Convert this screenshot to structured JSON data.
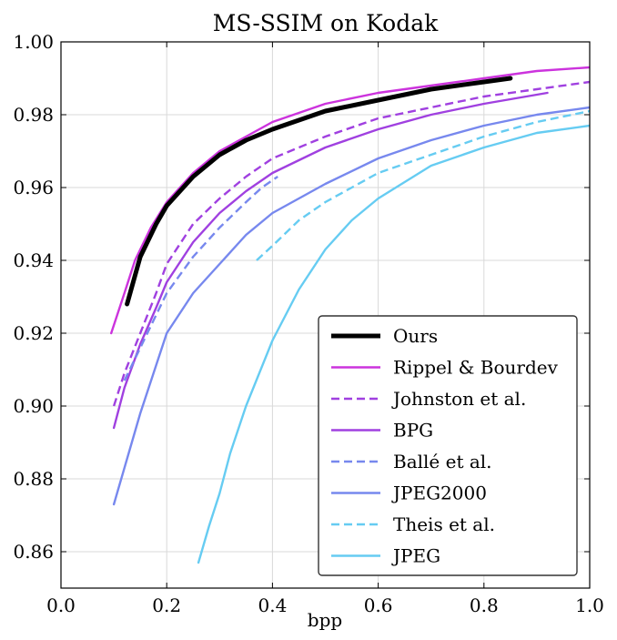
{
  "chart_data": {
    "type": "line",
    "title": "MS-SSIM on Kodak",
    "xlabel": "bpp",
    "ylabel": "",
    "xlim": [
      0.0,
      1.0
    ],
    "ylim": [
      0.85,
      1.0
    ],
    "grid": true,
    "legend_position": "bottom-right",
    "xticks": [
      0.0,
      0.2,
      0.4,
      0.6,
      0.8,
      1.0
    ],
    "xtick_labels": [
      "0.0",
      "0.2",
      "0.4",
      "0.6",
      "0.8",
      "1.0"
    ],
    "yticks": [
      0.86,
      0.88,
      0.9,
      0.92,
      0.94,
      0.96,
      0.98,
      1.0
    ],
    "ytick_labels": [
      "0.86",
      "0.88",
      "0.90",
      "0.92",
      "0.94",
      "0.96",
      "0.98",
      "1.00"
    ],
    "series": [
      {
        "name": "Ours",
        "color": "#000000",
        "dash": "solid",
        "width": 5,
        "x": [
          0.125,
          0.15,
          0.18,
          0.2,
          0.25,
          0.3,
          0.35,
          0.4,
          0.5,
          0.6,
          0.7,
          0.8,
          0.85
        ],
        "y": [
          0.928,
          0.941,
          0.95,
          0.955,
          0.963,
          0.969,
          0.973,
          0.976,
          0.981,
          0.984,
          0.987,
          0.989,
          0.99
        ]
      },
      {
        "name": "Rippel & Bourdev",
        "color": "#cc33dd",
        "dash": "solid",
        "width": 2.4,
        "x": [
          0.095,
          0.12,
          0.14,
          0.17,
          0.2,
          0.25,
          0.3,
          0.35,
          0.4,
          0.5,
          0.6,
          0.7,
          0.8,
          0.9,
          1.0
        ],
        "y": [
          0.92,
          0.931,
          0.94,
          0.949,
          0.956,
          0.964,
          0.97,
          0.974,
          0.978,
          0.983,
          0.986,
          0.988,
          0.99,
          0.992,
          0.993
        ]
      },
      {
        "name": "Johnston et al.",
        "color": "#a040e0",
        "dash": "dashed",
        "width": 2.4,
        "x": [
          0.1,
          0.12,
          0.15,
          0.18,
          0.2,
          0.25,
          0.3,
          0.35,
          0.4,
          0.5,
          0.6,
          0.7,
          0.8,
          0.9,
          1.0
        ],
        "y": [
          0.9,
          0.909,
          0.92,
          0.931,
          0.939,
          0.95,
          0.957,
          0.963,
          0.968,
          0.974,
          0.979,
          0.982,
          0.985,
          0.987,
          0.989
        ]
      },
      {
        "name": "BPG",
        "color": "#a040e0",
        "dash": "solid",
        "width": 2.4,
        "x": [
          0.1,
          0.12,
          0.15,
          0.18,
          0.2,
          0.25,
          0.3,
          0.35,
          0.4,
          0.5,
          0.6,
          0.7,
          0.8,
          0.92
        ],
        "y": [
          0.894,
          0.905,
          0.917,
          0.927,
          0.934,
          0.945,
          0.953,
          0.959,
          0.964,
          0.971,
          0.976,
          0.98,
          0.983,
          0.986
        ]
      },
      {
        "name": "Ballé et al.",
        "color": "#7788ee",
        "dash": "dashed",
        "width": 2.4,
        "x": [
          0.12,
          0.15,
          0.18,
          0.2,
          0.25,
          0.3,
          0.35,
          0.38,
          0.41
        ],
        "y": [
          0.907,
          0.916,
          0.925,
          0.931,
          0.941,
          0.949,
          0.956,
          0.96,
          0.963
        ]
      },
      {
        "name": "JPEG2000",
        "color": "#7788ee",
        "dash": "solid",
        "width": 2.4,
        "x": [
          0.1,
          0.15,
          0.2,
          0.25,
          0.3,
          0.35,
          0.4,
          0.5,
          0.6,
          0.7,
          0.8,
          0.9,
          1.0
        ],
        "y": [
          0.873,
          0.898,
          0.92,
          0.931,
          0.939,
          0.947,
          0.953,
          0.961,
          0.968,
          0.973,
          0.977,
          0.98,
          0.982
        ]
      },
      {
        "name": "Theis et al.",
        "color": "#66ccf2",
        "dash": "dashed",
        "width": 2.4,
        "x": [
          0.37,
          0.4,
          0.45,
          0.5,
          0.55,
          0.6,
          0.7,
          0.8,
          0.9,
          1.0
        ],
        "y": [
          0.94,
          0.944,
          0.951,
          0.956,
          0.96,
          0.964,
          0.969,
          0.974,
          0.978,
          0.981
        ]
      },
      {
        "name": "JPEG",
        "color": "#66ccf2",
        "dash": "solid",
        "width": 2.4,
        "x": [
          0.26,
          0.28,
          0.3,
          0.32,
          0.35,
          0.4,
          0.45,
          0.5,
          0.55,
          0.6,
          0.7,
          0.8,
          0.9,
          1.0
        ],
        "y": [
          0.857,
          0.867,
          0.876,
          0.887,
          0.9,
          0.918,
          0.932,
          0.943,
          0.951,
          0.957,
          0.966,
          0.971,
          0.975,
          0.977
        ]
      }
    ]
  }
}
